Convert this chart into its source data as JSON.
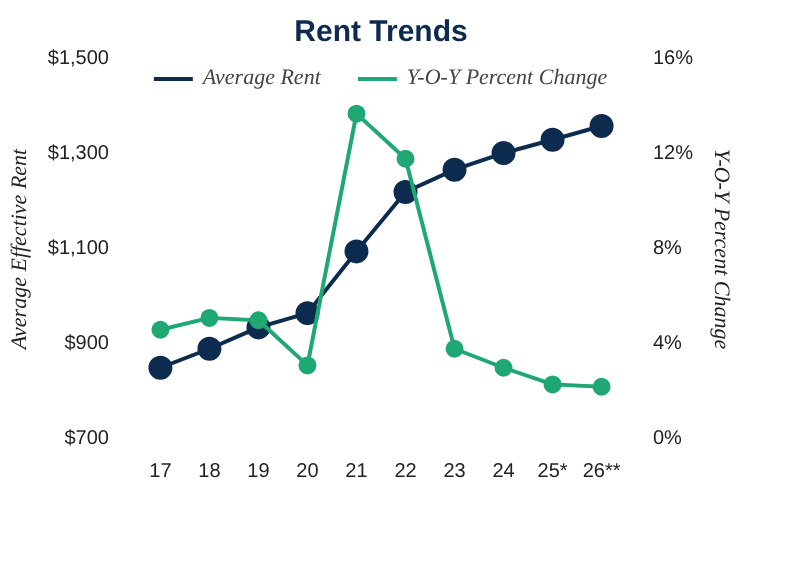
{
  "chart_data": {
    "type": "line",
    "title": "Rent Trends",
    "ylabel": "Average Effective Rent",
    "y2label": "Y-O-Y Percent Change",
    "categories": [
      "17",
      "18",
      "19",
      "20",
      "21",
      "22",
      "23",
      "24",
      "25*",
      "26**"
    ],
    "series": [
      {
        "name": "Average Rent",
        "color": "#0d2b4e",
        "values": [
          850,
          890,
          935,
          965,
          1095,
          1220,
          1267,
          1302,
          1330,
          1359
        ]
      },
      {
        "name": "Y-O-Y Percent Change",
        "color": "#1fa774",
        "axis": "y2",
        "values": [
          4.6,
          5.1,
          5.0,
          3.1,
          13.7,
          11.8,
          3.8,
          3.0,
          2.3,
          2.2
        ]
      }
    ],
    "ylim": [
      700,
      1500
    ],
    "yticks": [
      {
        "value": 700,
        "label": "$700"
      },
      {
        "value": 900,
        "label": "$900"
      },
      {
        "value": 1100,
        "label": "$1,100"
      },
      {
        "value": 1300,
        "label": "$1,300"
      },
      {
        "value": 1500,
        "label": "$1,500"
      }
    ],
    "y2lim": [
      0,
      16
    ],
    "y2ticks": [
      {
        "value": 0,
        "label": "0%"
      },
      {
        "value": 4,
        "label": "4%"
      },
      {
        "value": 8,
        "label": "8%"
      },
      {
        "value": 12,
        "label": "12%"
      },
      {
        "value": 16,
        "label": "16%"
      }
    ],
    "legend": "top",
    "grid": false,
    "marker": "circle",
    "line_style": "solid"
  }
}
